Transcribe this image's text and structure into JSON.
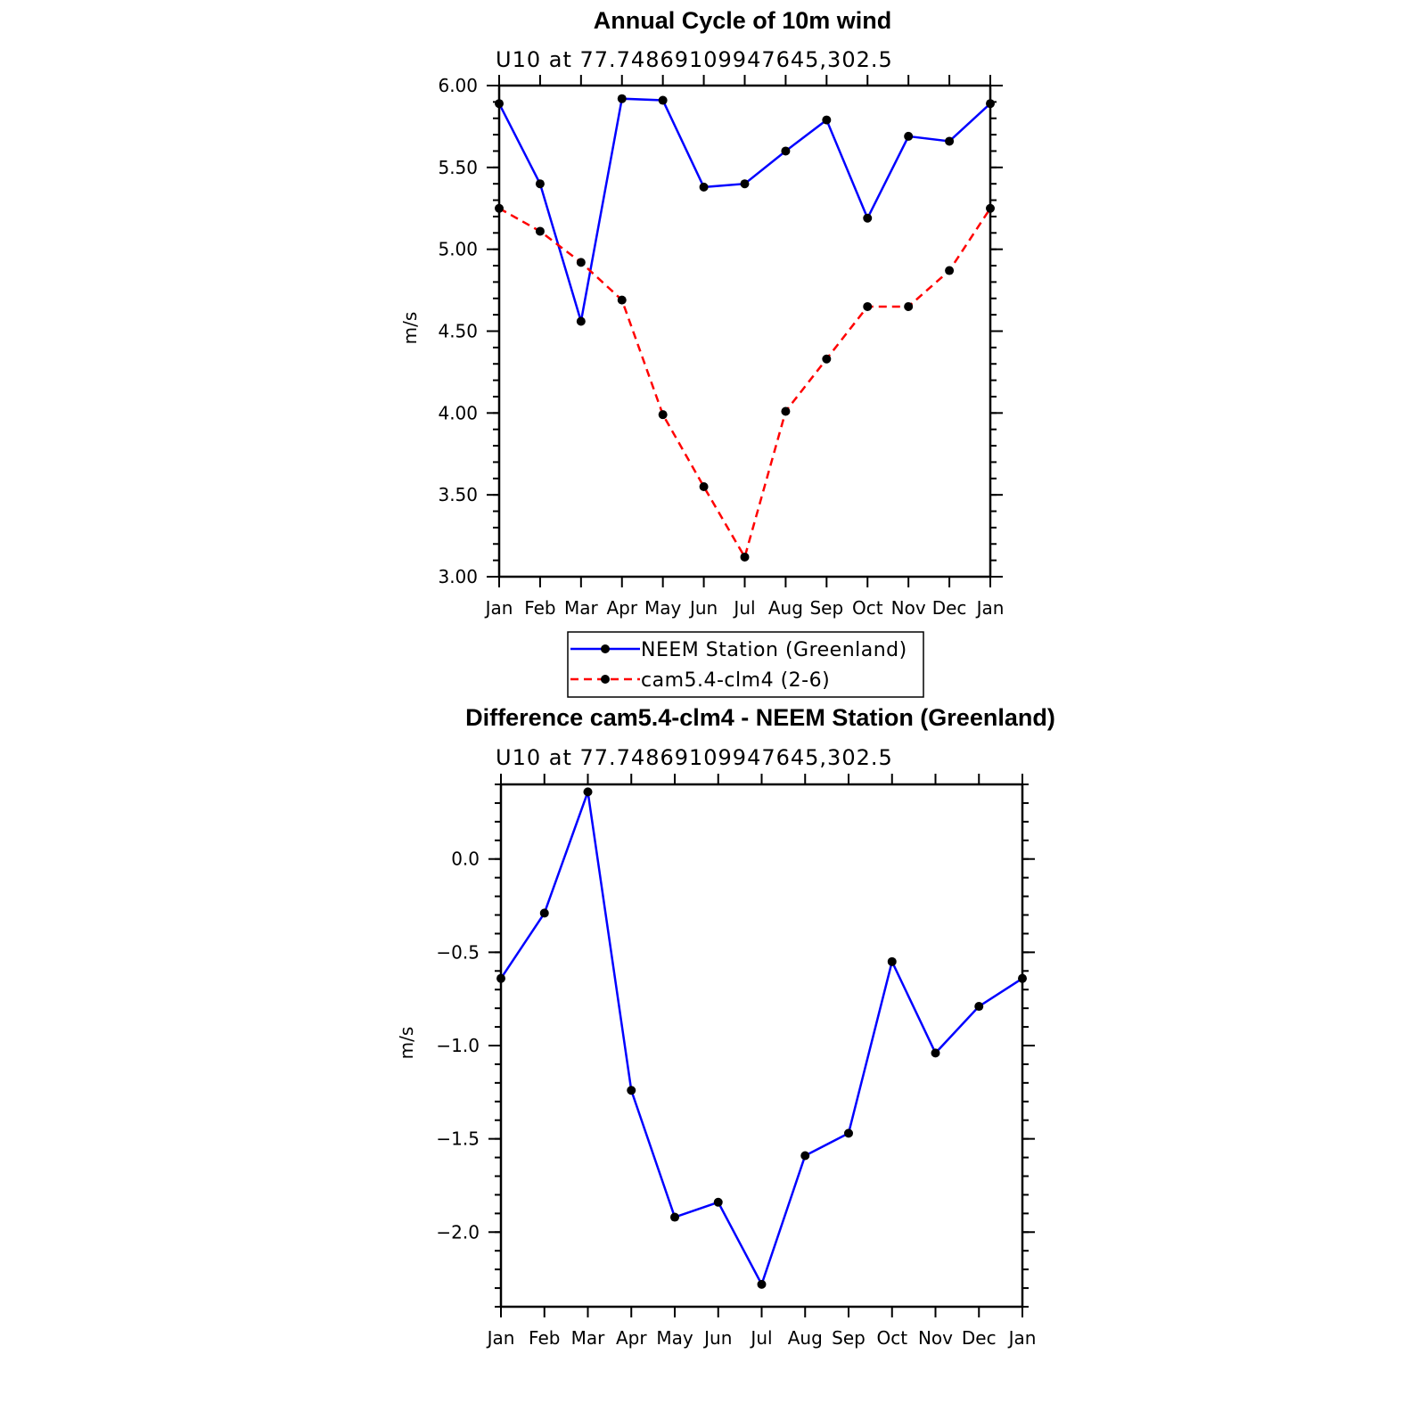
{
  "chart_data": [
    {
      "type": "line",
      "title": "Annual Cycle of 10m wind",
      "subtitle": "U10 at 77.74869109947645,302.5",
      "xlabel": "",
      "ylabel": "m/s",
      "categories": [
        "Jan",
        "Feb",
        "Mar",
        "Apr",
        "May",
        "Jun",
        "Jul",
        "Aug",
        "Sep",
        "Oct",
        "Nov",
        "Dec",
        "Jan"
      ],
      "ylim": [
        3.0,
        6.0
      ],
      "yticks": [
        3.0,
        3.5,
        4.0,
        4.5,
        5.0,
        5.5,
        6.0
      ],
      "ytick_labels": [
        "3.00",
        "3.50",
        "4.00",
        "4.50",
        "5.00",
        "5.50",
        "6.00"
      ],
      "series": [
        {
          "name": "NEEM Station (Greenland)",
          "color": "#0000ff",
          "dashed": false,
          "values": [
            5.89,
            5.4,
            4.56,
            5.92,
            5.91,
            5.38,
            5.4,
            5.6,
            5.79,
            5.19,
            5.69,
            5.66,
            5.89
          ]
        },
        {
          "name": "cam5.4-clm4 (2-6)",
          "color": "#ff0000",
          "dashed": true,
          "values": [
            5.25,
            5.11,
            4.92,
            4.69,
            3.99,
            3.55,
            3.12,
            4.01,
            4.33,
            4.65,
            4.65,
            4.87,
            5.25
          ]
        }
      ],
      "legend": "below"
    },
    {
      "type": "line",
      "title": "Difference cam5.4-clm4 - NEEM Station (Greenland)",
      "subtitle": "U10 at 77.74869109947645,302.5",
      "xlabel": "",
      "ylabel": "m/s",
      "categories": [
        "Jan",
        "Feb",
        "Mar",
        "Apr",
        "May",
        "Jun",
        "Jul",
        "Aug",
        "Sep",
        "Oct",
        "Nov",
        "Dec",
        "Jan"
      ],
      "ylim": [
        -2.4,
        0.4
      ],
      "yticks": [
        -2.0,
        -1.5,
        -1.0,
        -0.5,
        0.0
      ],
      "ytick_labels": [
        "−2.0",
        "−1.5",
        "−1.0",
        "−0.5",
        "0.0"
      ],
      "series": [
        {
          "name": "",
          "color": "#0000ff",
          "dashed": false,
          "values": [
            -0.64,
            -0.29,
            0.36,
            -1.24,
            -1.92,
            -1.84,
            -2.28,
            -1.59,
            -1.47,
            -0.55,
            -1.04,
            -0.79,
            -0.64
          ]
        }
      ]
    }
  ]
}
